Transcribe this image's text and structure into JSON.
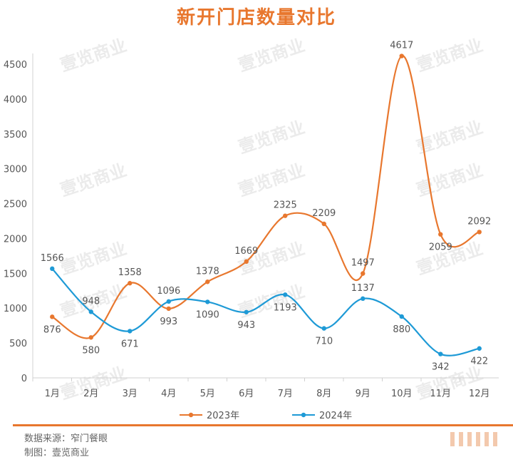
{
  "chart_data": {
    "type": "line",
    "title": "新开门店数量对比",
    "categories": [
      "1月",
      "2月",
      "3月",
      "4月",
      "5月",
      "6月",
      "7月",
      "8月",
      "9月",
      "10月",
      "11月",
      "12月"
    ],
    "series": [
      {
        "name": "2023年",
        "color": "#e8772e",
        "values": [
          876,
          580,
          1358,
          993,
          1378,
          1669,
          2325,
          2209,
          1497,
          4617,
          2059,
          2092
        ]
      },
      {
        "name": "2024年",
        "color": "#1e9ad6",
        "values": [
          1566,
          948,
          671,
          1096,
          1090,
          943,
          1193,
          710,
          1137,
          880,
          342,
          422
        ]
      }
    ],
    "yticks": [
      0,
      500,
      1000,
      1500,
      2000,
      2500,
      3000,
      3500,
      4000,
      4500
    ],
    "ylim": [
      0,
      4500
    ],
    "grid": false,
    "smooth": true,
    "legend_position": "bottom"
  },
  "watermark": "壹览商业",
  "footer": {
    "source": "数据来源：窄门餐眼",
    "author": "制图：壹览商业"
  }
}
